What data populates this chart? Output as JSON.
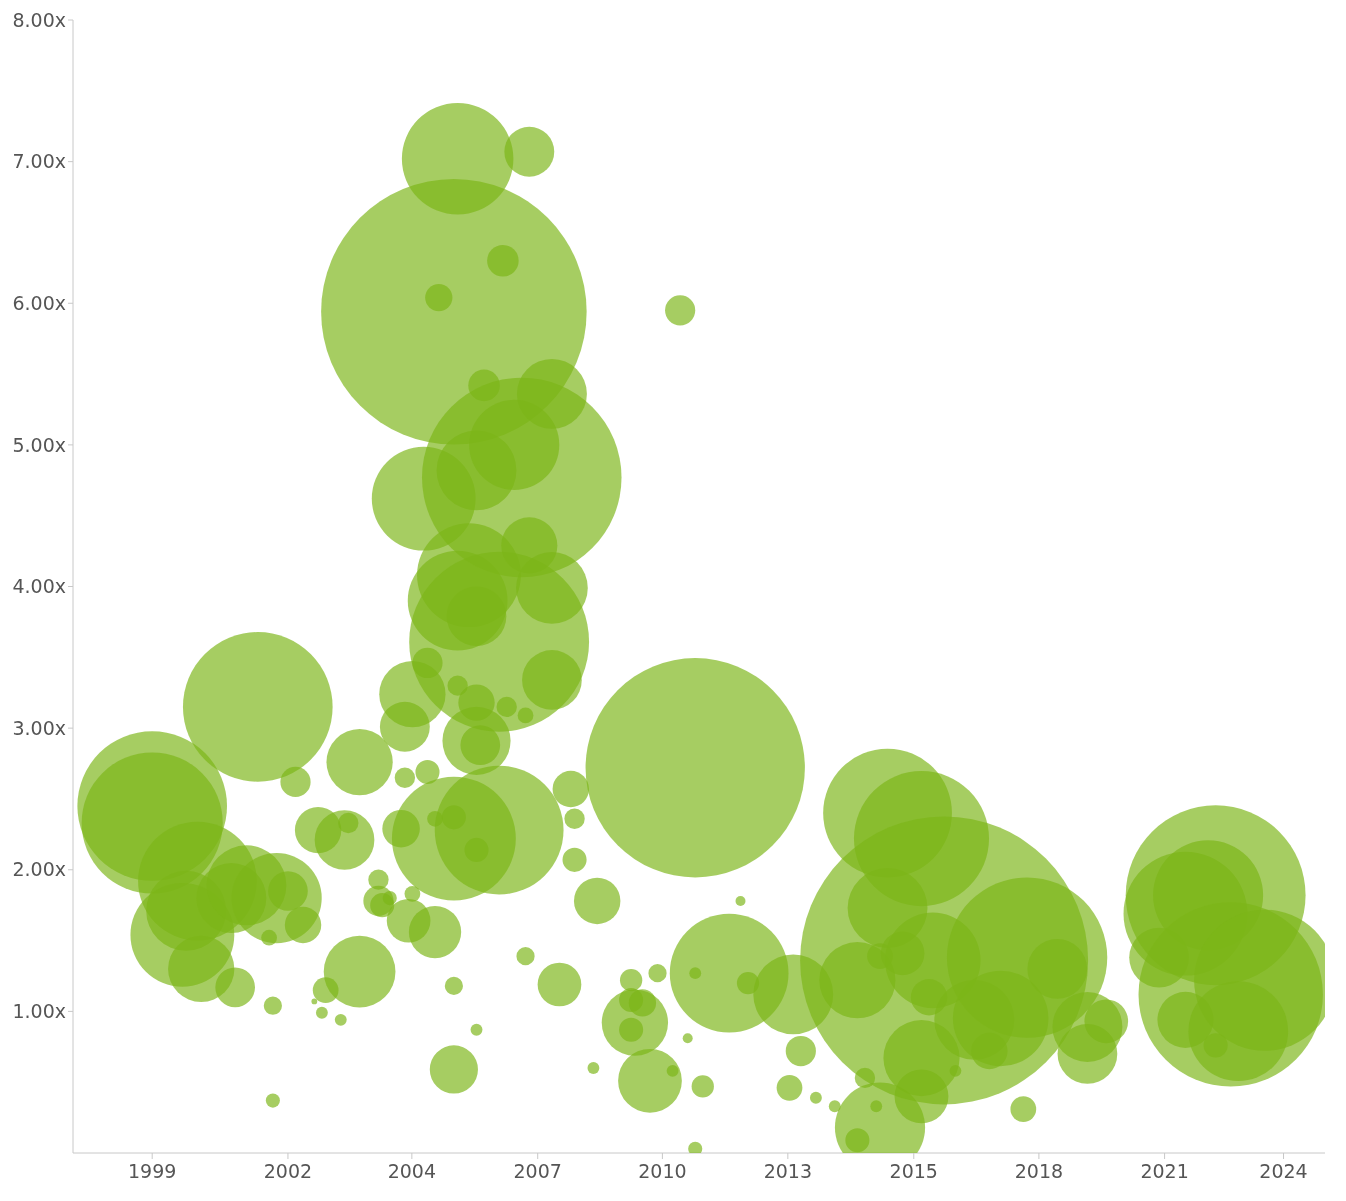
{
  "chart_data": {
    "type": "bubble",
    "xlim": [
      "1997-04",
      "2024-12"
    ],
    "xticks": [
      {
        "value": "1999-01-01",
        "label": "1999"
      },
      {
        "value": "2002-01-01",
        "label": "2002"
      },
      {
        "value": "2004-09-27",
        "label": "2004"
      },
      {
        "value": "2007-07-08",
        "label": "2007"
      },
      {
        "value": "2010-04-10",
        "label": "2010"
      },
      {
        "value": "2013-01-18",
        "label": "2013"
      },
      {
        "value": "2015-10-30",
        "label": "2015"
      },
      {
        "value": "2018-08-05",
        "label": "2018"
      },
      {
        "value": "2021-05-15",
        "label": "2021"
      },
      {
        "value": "2024-01-01",
        "label": "2024"
      }
    ],
    "ylim": [
      0,
      8
    ],
    "yticks": [
      {
        "value": 1,
        "label": "1.00x"
      },
      {
        "value": 2,
        "label": "2.00x"
      },
      {
        "value": 3,
        "label": "3.00x"
      },
      {
        "value": 4,
        "label": "4.00x"
      },
      {
        "value": 5,
        "label": "5.00x"
      },
      {
        "value": 6,
        "label": "6.00x"
      },
      {
        "value": 7,
        "label": "7.00x"
      },
      {
        "value": 8,
        "label": "8.00x"
      }
    ],
    "series": [
      {
        "color": "#7cb518",
        "x": [
          "1999-01",
          "1999-01",
          "2000-01",
          "1999-10",
          "1999-09",
          "2000-02",
          "2000-10",
          "2001-02",
          "2000-11",
          "2001-05",
          "2001-10",
          "2002-01",
          "2001-08",
          "2001-09",
          "2001-09",
          "2002-03",
          "2002-05",
          "2002-09",
          "2002-08",
          "2002-10",
          "2002-11",
          "2003-03",
          "2003-04",
          "2003-05",
          "2003-08",
          "2003-08",
          "2004-01",
          "2004-01",
          "2004-02",
          "2004-04",
          "2004-07",
          "2004-08",
          "2004-08",
          "2004-09",
          "2004-10",
          "2004-10",
          "2005-01",
          "2005-02",
          "2005-02",
          "2005-05",
          "2005-04",
          "2005-04",
          "2005-09",
          "2005-10",
          "2005-09",
          "2005-09",
          "2005-09",
          "2005-09",
          "2005-10",
          "2006-01",
          "2006-03",
          "2006-03",
          "2005-10",
          "2006-03",
          "2006-03",
          "2006-04",
          "2006-03",
          "2006-03",
          "2006-05",
          "2006-10",
          "2006-09",
          "2006-09",
          "2007-03",
          "2007-01",
          "2006-11",
          "2007-04",
          "2007-05",
          "2007-05",
          "2007-11",
          "2007-11",
          "2007-11",
          "2007-04",
          "2008-01",
          "2008-04",
          "2008-05",
          "2008-05",
          "2008-11",
          "2008-10",
          "2009-08",
          "2009-08",
          "2009-09",
          "2009-08",
          "2009-11",
          "2010-01",
          "2010-03",
          "2010-07",
          "2010-09",
          "2011-01",
          "2010-11",
          "2011-01",
          "2011-01",
          "2011-03",
          "2011-10",
          "2012-01",
          "2012-03",
          "2013-03",
          "2013-02",
          "2013-05",
          "2013-09",
          "2014-02",
          "2014-08",
          "2014-08",
          "2014-10",
          "2015-01",
          "2015-02",
          "2015-04",
          "2015-04",
          "2015-02",
          "2015-08",
          "2016-01",
          "2016-01",
          "2016-01",
          "2016-04",
          "2016-03",
          "2016-10",
          "2016-07",
          "2017-03",
          "2017-07",
          "2017-10",
          "2018-05",
          "2018-04",
          "2019-01",
          "2019-09",
          "2019-09",
          "2020-02",
          "2021-04",
          "2021-11",
          "2021-11",
          "2022-07",
          "2022-05",
          "2022-11",
          "2023-08",
          "2023-01",
          "2022-07"
        ],
        "values": [
          2.45,
          2.33,
          1.92,
          1.71,
          1.54,
          1.3,
          1.8,
          1.89,
          1.17,
          3.15,
          1.8,
          1.85,
          1.52,
          1.04,
          0.37,
          2.62,
          1.61,
          2.28,
          1.07,
          0.99,
          1.15,
          0.94,
          2.21,
          2.33,
          2.76,
          1.28,
          1.93,
          1.78,
          1.75,
          1.8,
          2.29,
          2.65,
          3.01,
          1.64,
          1.83,
          3.24,
          4.62,
          2.69,
          3.46,
          6.04,
          1.56,
          2.36,
          5.94,
          7.02,
          2.22,
          2.37,
          1.18,
          0.59,
          3.9,
          4.08,
          4.82,
          3.79,
          3.3,
          3.18,
          2.91,
          2.88,
          2.14,
          0.87,
          5.42,
          6.3,
          3.61,
          2.28,
          4.77,
          5.0,
          3.15,
          3.09,
          7.07,
          4.29,
          5.36,
          3.99,
          3.34,
          1.39,
          1.19,
          2.57,
          2.36,
          2.07,
          1.78,
          0.6,
          1.08,
          1.22,
          0.92,
          0.87,
          1.06,
          0.51,
          1.27,
          0.58,
          5.95,
          2.72,
          0.81,
          1.27,
          0.03,
          0.47,
          1.27,
          1.78,
          1.2,
          1.12,
          0.46,
          0.72,
          0.39,
          0.33,
          1.22,
          0.09,
          0.53,
          0.33,
          0.18,
          2.4,
          1.73,
          1.39,
          1.41,
          0.67,
          0.4,
          2.22,
          1.36,
          1.1,
          0.58,
          1.36,
          0.94,
          0.72,
          0.95,
          1.38,
          0.31,
          1.3,
          0.89,
          0.7,
          0.93,
          1.38,
          1.69,
          0.94,
          1.82,
          1.82,
          1.12,
          1.22,
          0.86,
          0.76
        ],
        "sizes": [
          0.27,
          0.24,
          0.17,
          0.077,
          0.13,
          0.053,
          0.059,
          0.077,
          0.019,
          0.27,
          0.098,
          0.019,
          0.003,
          0.004,
          0.0024,
          0.011,
          0.016,
          0.026,
          0.0004,
          0.0017,
          0.008,
          0.0017,
          0.043,
          0.005,
          0.053,
          0.062,
          0.005,
          0.011,
          0.007,
          0.0024,
          0.017,
          0.005,
          0.03,
          0.023,
          0.003,
          0.053,
          0.13,
          0.007,
          0.011,
          0.009,
          0.033,
          0.003,
          0.85,
          0.15,
          0.185,
          0.007,
          0.004,
          0.028,
          0.12,
          0.13,
          0.077,
          0.043,
          0.005,
          0.016,
          0.056,
          0.019,
          0.007,
          0.0017,
          0.012,
          0.012,
          0.39,
          0.2,
          0.48,
          0.098,
          0.005,
          0.003,
          0.03,
          0.038,
          0.059,
          0.062,
          0.043,
          0.004,
          0.023,
          0.016,
          0.005,
          0.007,
          0.026,
          0.0017,
          0.007,
          0.006,
          0.053,
          0.007,
          0.009,
          0.049,
          0.004,
          0.0017,
          0.011,
          0.58,
          0.0012,
          0.0017,
          0.0024,
          0.006,
          0.17,
          0.0012,
          0.006,
          0.077,
          0.008,
          0.011,
          0.0017,
          0.0017,
          0.07,
          0.007,
          0.005,
          0.0017,
          0.098,
          0.2,
          0.077,
          0.008,
          0.023,
          0.07,
          0.035,
          0.22,
          0.11,
          0.016,
          0.0017,
          1,
          0.077,
          0.016,
          0.11,
          0.31,
          0.008,
          0.043,
          0.059,
          0.043,
          0.023,
          0.043,
          0.185,
          0.038,
          0.39,
          0.146,
          0.41,
          0.24,
          0.12,
          0.007
        ]
      }
    ]
  }
}
